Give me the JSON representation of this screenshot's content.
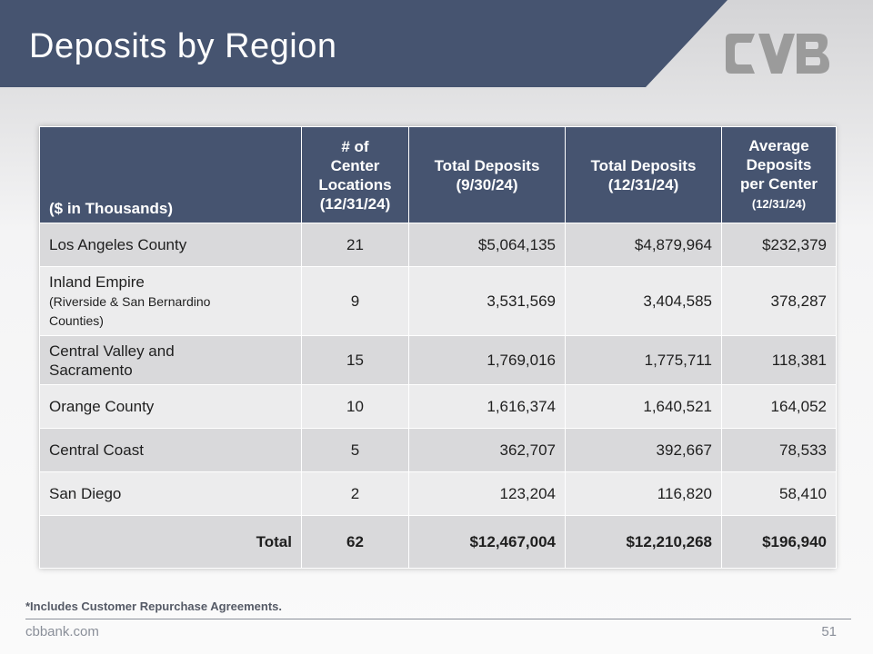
{
  "slide": {
    "title": "Deposits by Region",
    "footnote": "*Includes Customer Repurchase Agreements.",
    "website": "cbbank.com",
    "page_number": "51",
    "colors": {
      "banner": "#465470",
      "header": "#465470",
      "row_dark": "#d9d9db",
      "row_light": "#ececed",
      "logo": "#9b9b9b"
    }
  },
  "table": {
    "headers": {
      "unit": "($ in Thousands)",
      "locations": [
        "# of",
        "Center",
        "Locations",
        "(12/31/24)"
      ],
      "deposits_q3": [
        "Total Deposits",
        "(9/30/24)"
      ],
      "deposits_q4": [
        "Total Deposits",
        "(12/31/24)"
      ],
      "average": [
        "Average",
        "Deposits",
        "per Center",
        "(12/31/24)"
      ]
    },
    "rows": [
      {
        "region": "Los Angeles County",
        "sub": [
          "",
          ""
        ],
        "locations": "21",
        "deposits_q3": "$5,064,135",
        "deposits_q4": "$4,879,964",
        "average": "$232,379"
      },
      {
        "region": "Inland Empire",
        "sub": [
          "(Riverside & San Bernardino",
          "Counties)"
        ],
        "locations": "9",
        "deposits_q3": "3,531,569",
        "deposits_q4": "3,404,585",
        "average": "378,287"
      },
      {
        "region": "Central Valley and",
        "sub": [
          "Sacramento",
          ""
        ],
        "locations": "15",
        "deposits_q3": "1,769,016",
        "deposits_q4": "1,775,711",
        "average": "118,381"
      },
      {
        "region": "Orange County",
        "sub": [
          "",
          ""
        ],
        "locations": "10",
        "deposits_q3": "1,616,374",
        "deposits_q4": "1,640,521",
        "average": "164,052"
      },
      {
        "region": "Central Coast",
        "sub": [
          "",
          ""
        ],
        "locations": "5",
        "deposits_q3": "362,707",
        "deposits_q4": "392,667",
        "average": "78,533"
      },
      {
        "region": "San Diego",
        "sub": [
          "",
          ""
        ],
        "locations": "2",
        "deposits_q3": "123,204",
        "deposits_q4": "116,820",
        "average": "58,410"
      }
    ],
    "total": {
      "label": "Total",
      "locations": "62",
      "deposits_q3": "$12,467,004",
      "deposits_q4": "$12,210,268",
      "average": "$196,940"
    }
  }
}
